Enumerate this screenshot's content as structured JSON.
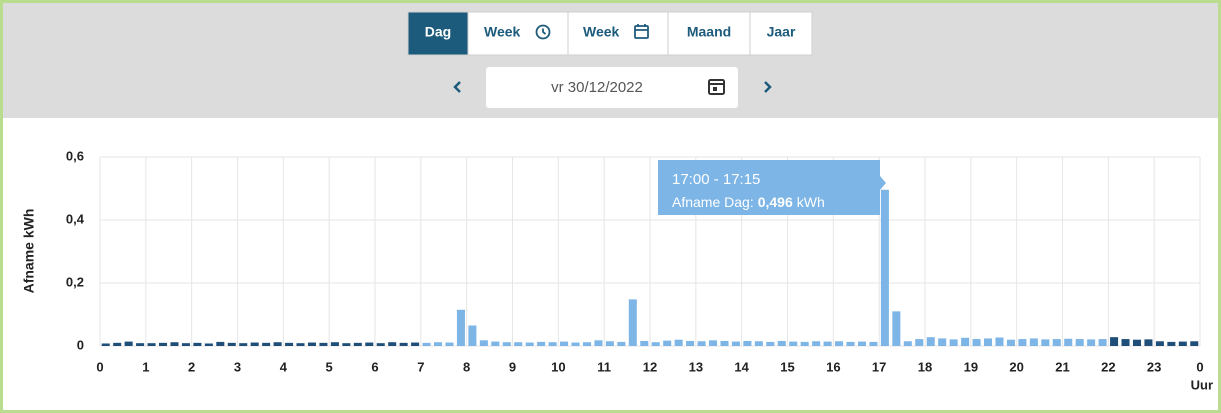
{
  "tabs": [
    "Dag",
    "Week",
    "Week",
    "Maand",
    "Jaar"
  ],
  "active_tab": 0,
  "date": "vr 30/12/2022",
  "chart_data": {
    "type": "bar",
    "ylabel": "Afname kWh",
    "xlabel": "Uur",
    "xlim": [
      0,
      24
    ],
    "xticks": [
      0,
      1,
      2,
      3,
      4,
      5,
      6,
      7,
      8,
      9,
      10,
      11,
      12,
      13,
      14,
      15,
      16,
      17,
      18,
      19,
      20,
      21,
      22,
      23,
      {
        "value": 24,
        "label": "0"
      }
    ],
    "ylim": [
      0,
      0.6
    ],
    "yticks": [
      0,
      {
        "value": 0.2,
        "label": "0,2"
      },
      {
        "value": 0.4,
        "label": "0,4"
      },
      {
        "value": 0.6,
        "label": "0,6"
      }
    ],
    "grid": true,
    "bar_width": 0.25,
    "color": "#7cb5e6",
    "color_ranges": [
      {
        "from": 0,
        "to": 7,
        "color": "#1f4f78"
      },
      {
        "from": 22,
        "to": 24,
        "color": "#1f4f78"
      }
    ],
    "x": [
      0,
      0.25,
      0.5,
      0.75,
      1,
      1.25,
      1.5,
      1.75,
      2,
      2.25,
      2.5,
      2.75,
      3,
      3.25,
      3.5,
      3.75,
      4,
      4.25,
      4.5,
      4.75,
      5,
      5.25,
      5.5,
      5.75,
      6,
      6.25,
      6.5,
      6.75,
      7,
      7.25,
      7.5,
      7.75,
      8,
      8.25,
      8.5,
      8.75,
      9,
      9.25,
      9.5,
      9.75,
      10,
      10.25,
      10.5,
      10.75,
      11,
      11.25,
      11.5,
      11.75,
      12,
      12.25,
      12.5,
      12.75,
      13,
      13.25,
      13.5,
      13.75,
      14,
      14.25,
      14.5,
      14.75,
      15,
      15.25,
      15.5,
      15.75,
      16,
      16.25,
      16.5,
      16.75,
      17,
      17.25,
      17.5,
      17.75,
      18,
      18.25,
      18.5,
      18.75,
      19,
      19.25,
      19.5,
      19.75,
      20,
      20.25,
      20.5,
      20.75,
      21,
      21.25,
      21.5,
      21.75,
      22,
      22.25,
      22.5,
      22.75,
      23,
      23.25,
      23.5,
      23.75
    ],
    "values": [
      0.008,
      0.01,
      0.014,
      0.009,
      0.009,
      0.01,
      0.012,
      0.009,
      0.01,
      0.008,
      0.013,
      0.01,
      0.009,
      0.011,
      0.01,
      0.012,
      0.01,
      0.009,
      0.011,
      0.01,
      0.012,
      0.009,
      0.01,
      0.011,
      0.009,
      0.012,
      0.01,
      0.011,
      0.01,
      0.012,
      0.011,
      0.115,
      0.065,
      0.018,
      0.014,
      0.012,
      0.012,
      0.011,
      0.013,
      0.012,
      0.014,
      0.011,
      0.012,
      0.018,
      0.015,
      0.013,
      0.148,
      0.016,
      0.012,
      0.017,
      0.02,
      0.016,
      0.015,
      0.018,
      0.016,
      0.014,
      0.016,
      0.015,
      0.013,
      0.016,
      0.014,
      0.013,
      0.015,
      0.014,
      0.015,
      0.013,
      0.014,
      0.013,
      0.496,
      0.11,
      0.015,
      0.022,
      0.028,
      0.024,
      0.021,
      0.026,
      0.022,
      0.024,
      0.027,
      0.02,
      0.022,
      0.024,
      0.021,
      0.022,
      0.023,
      0.022,
      0.021,
      0.022,
      0.028,
      0.022,
      0.02,
      0.021,
      0.015,
      0.013,
      0.014,
      0.015
    ],
    "tooltip": {
      "title": "17:00 - 17:15",
      "label": "Afname Dag:",
      "value_label": "0,496",
      "unit": "kWh"
    }
  }
}
